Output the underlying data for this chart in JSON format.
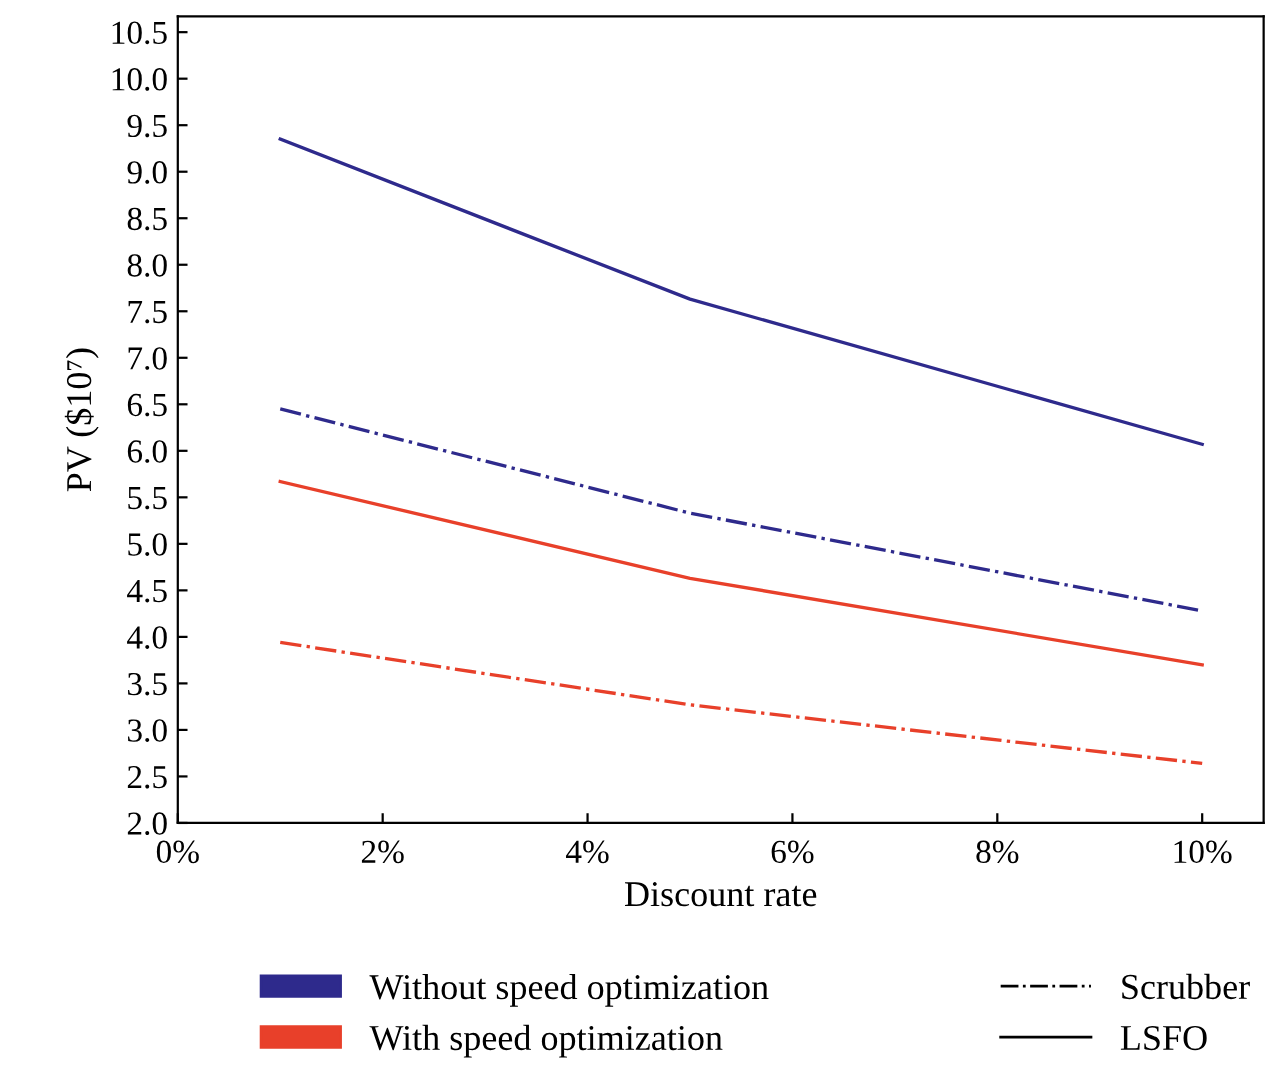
{
  "chart_data": {
    "type": "line",
    "xlabel": "Discount rate",
    "ylabel": "PV ($10⁷)",
    "x": [
      1,
      5,
      10
    ],
    "series": [
      {
        "color": "#2e2a8c",
        "line_style": "solid",
        "values": [
          9.35,
          7.63,
          6.07
        ]
      },
      {
        "color": "#2e2a8c",
        "line_style": "dashdot",
        "values": [
          6.45,
          5.33,
          4.28
        ]
      },
      {
        "color": "#e8402a",
        "line_style": "solid",
        "values": [
          5.67,
          4.63,
          3.7
        ]
      },
      {
        "color": "#e8402a",
        "line_style": "dashdot",
        "values": [
          3.94,
          3.27,
          2.64
        ]
      }
    ],
    "annotations": [
      "Without speed optimization",
      "With speed optimization",
      "Scrubber",
      "LSFO"
    ],
    "xlim": [
      0,
      10.6
    ],
    "ylim": [
      2.0,
      10.67
    ],
    "xticks": [
      {
        "value": 0,
        "label": "0%"
      },
      {
        "value": 2,
        "label": "2%"
      },
      {
        "value": 4,
        "label": "4%"
      },
      {
        "value": 6,
        "label": "6%"
      },
      {
        "value": 8,
        "label": "8%"
      },
      {
        "value": 10,
        "label": "10%"
      }
    ],
    "yticks": [
      {
        "value": 2,
        "label": "2.0"
      },
      {
        "value": 2.5,
        "label": "2.5"
      },
      {
        "value": 3,
        "label": "3.0"
      },
      {
        "value": 3.5,
        "label": "3.5"
      },
      {
        "value": 4,
        "label": "4.0"
      },
      {
        "value": 4.5,
        "label": "4.5"
      },
      {
        "value": 5,
        "label": "5.0"
      },
      {
        "value": 5.5,
        "label": "5.5"
      },
      {
        "value": 6,
        "label": "6.0"
      },
      {
        "value": 6.5,
        "label": "6.5"
      },
      {
        "value": 7,
        "label": "7.0"
      },
      {
        "value": 7.5,
        "label": "7.5"
      },
      {
        "value": 8,
        "label": "8.0"
      },
      {
        "value": 8.5,
        "label": "8.5"
      },
      {
        "value": 9,
        "label": "9.0"
      },
      {
        "value": 9.5,
        "label": "9.5"
      },
      {
        "value": 10,
        "label": "10.0"
      },
      {
        "value": 10.5,
        "label": "10.5"
      }
    ],
    "grid": false
  }
}
